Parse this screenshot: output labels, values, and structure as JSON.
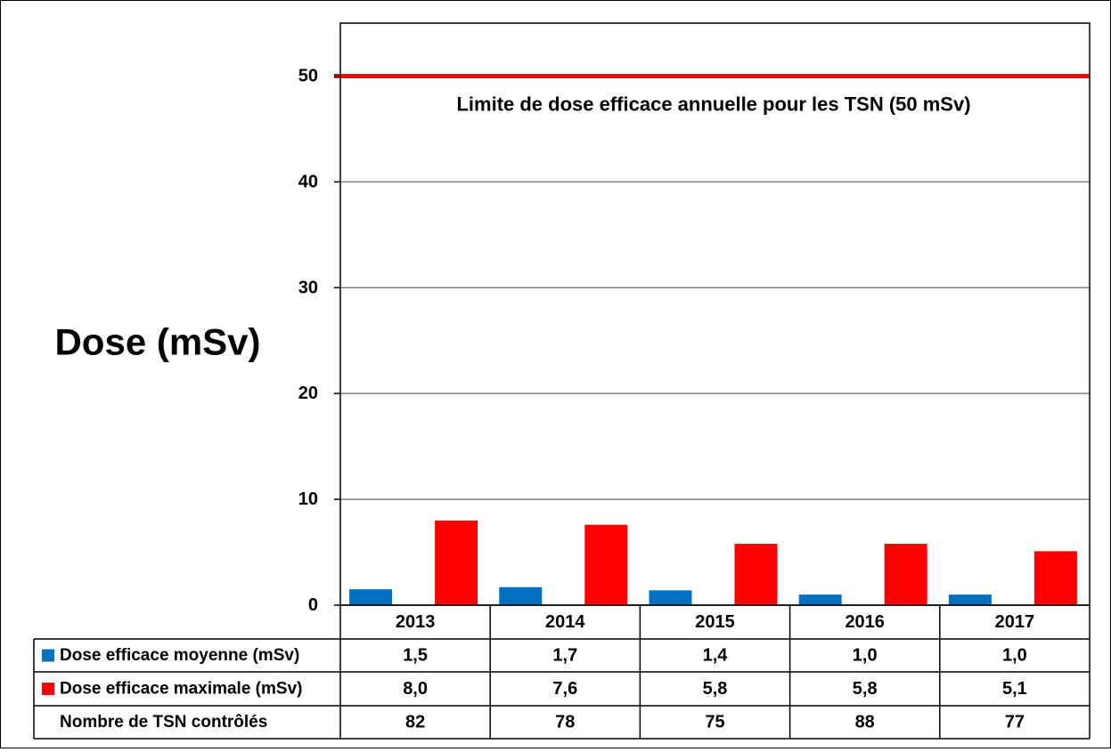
{
  "chart_data": {
    "type": "bar",
    "title": "",
    "ylabel": "Dose (mSv)",
    "xlabel": "",
    "ylim": [
      0,
      55
    ],
    "yticks": [
      0,
      10,
      20,
      30,
      40,
      50
    ],
    "grid": true,
    "categories": [
      "2013",
      "2014",
      "2015",
      "2016",
      "2017"
    ],
    "series": [
      {
        "name": "Dose efficace moyenne (mSv)",
        "color": "#0070C0",
        "values": [
          1.5,
          1.7,
          1.4,
          1.0,
          1.0
        ],
        "labels": [
          "1,5",
          "1,7",
          "1,4",
          "1,0",
          "1,0"
        ]
      },
      {
        "name": "Dose efficace maximale (mSv)",
        "color": "#FF0000",
        "values": [
          8.0,
          7.6,
          5.8,
          5.8,
          5.1
        ],
        "labels": [
          "8,0",
          "7,6",
          "5,8",
          "5,8",
          "5,1"
        ]
      }
    ],
    "reference_line": {
      "value": 50,
      "color": "#FF0000",
      "label": "Limite de dose efficace annuelle pour les TSN (50 mSv)"
    },
    "data_table": {
      "extra_row": {
        "name": "Nombre de TSN contrôlés",
        "values": [
          "82",
          "78",
          "75",
          "88",
          "77"
        ]
      }
    }
  }
}
